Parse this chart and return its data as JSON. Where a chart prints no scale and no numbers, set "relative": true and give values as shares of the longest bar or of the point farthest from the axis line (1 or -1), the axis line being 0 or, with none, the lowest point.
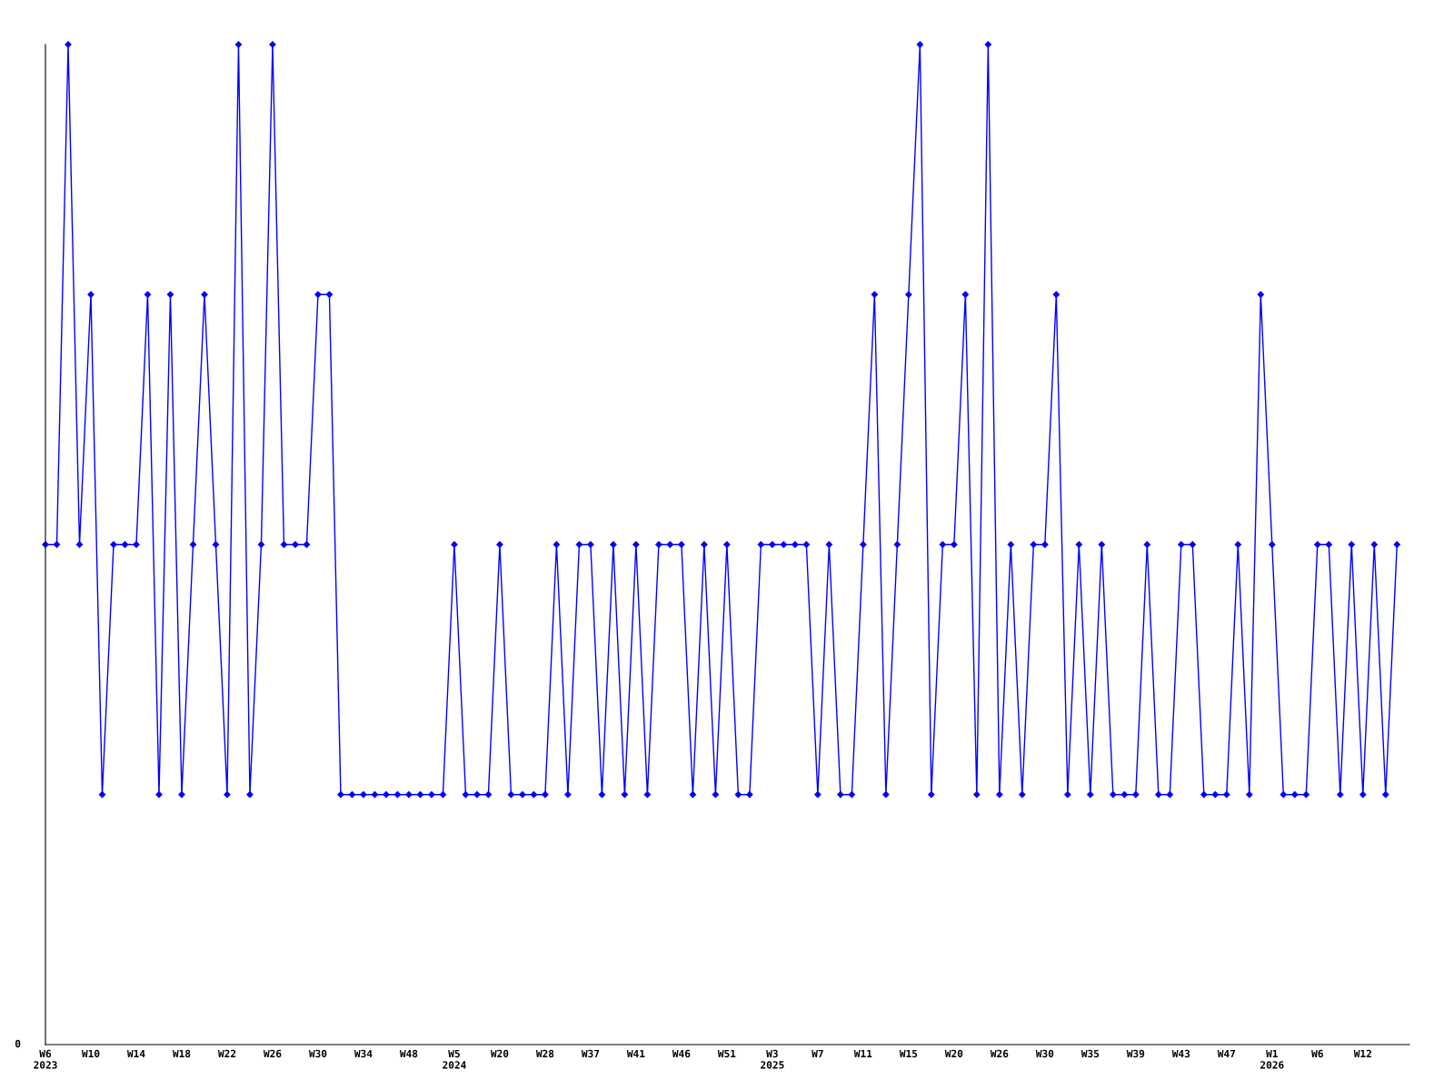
{
  "chart_data": {
    "type": "line",
    "relative": true,
    "marker": "diamond",
    "line_style": "solid",
    "grid": false,
    "legend": false,
    "annotations": [
      "0"
    ],
    "categories": [
      "W6\n2023",
      null,
      null,
      null,
      "W10",
      null,
      null,
      null,
      "W14",
      null,
      null,
      null,
      "W18",
      null,
      null,
      null,
      "W22",
      null,
      null,
      null,
      "W26",
      null,
      null,
      null,
      "W30",
      null,
      null,
      null,
      "W34",
      null,
      null,
      null,
      "W48",
      null,
      null,
      null,
      "W5\n2024",
      null,
      null,
      null,
      "W20",
      null,
      null,
      null,
      "W28",
      null,
      null,
      null,
      "W37",
      null,
      null,
      null,
      "W41",
      null,
      null,
      null,
      "W46",
      null,
      null,
      null,
      "W51",
      null,
      null,
      null,
      "W3\n2025",
      null,
      null,
      null,
      "W7",
      null,
      null,
      null,
      "W11",
      null,
      null,
      null,
      "W15",
      null,
      null,
      null,
      "W20",
      null,
      null,
      null,
      "W26",
      null,
      null,
      null,
      "W30",
      null,
      null,
      null,
      "W35",
      null,
      null,
      null,
      "W39",
      null,
      null,
      null,
      "W43",
      null,
      null,
      null,
      "W47",
      null,
      null,
      null,
      "W1\n2026",
      null,
      null,
      null,
      "W6",
      null,
      null,
      null,
      "W12",
      null,
      null,
      null
    ],
    "series": [
      {
        "color": "#0000ff",
        "values": [
          0.5,
          0.5,
          1,
          0.5,
          0.75,
          0.25,
          0.5,
          0.5,
          0.5,
          0.75,
          0.25,
          0.75,
          0.25,
          0.5,
          0.75,
          0.5,
          0.25,
          1,
          0.25,
          0.5,
          1,
          0.5,
          0.5,
          0.5,
          0.75,
          0.75,
          0.25,
          0.25,
          0.25,
          0.25,
          0.25,
          0.25,
          0.25,
          0.25,
          0.25,
          0.25,
          0.5,
          0.25,
          0.25,
          0.25,
          0.5,
          0.25,
          0.25,
          0.25,
          0.25,
          0.5,
          0.25,
          0.5,
          0.5,
          0.25,
          0.5,
          0.25,
          0.5,
          0.25,
          0.5,
          0.5,
          0.5,
          0.25,
          0.5,
          0.25,
          0.5,
          0.25,
          0.25,
          0.5,
          0.5,
          0.5,
          0.5,
          0.5,
          0.25,
          0.5,
          0.25,
          0.25,
          0.5,
          0.75,
          0.25,
          0.5,
          0.75,
          1,
          0.25,
          0.5,
          0.5,
          0.75,
          0.25,
          1,
          0.25,
          0.5,
          0.25,
          0.5,
          0.5,
          0.75,
          0.25,
          0.5,
          0.25,
          0.5,
          0.25,
          0.25,
          0.25,
          0.5,
          0.25,
          0.25,
          0.5,
          0.5,
          0.25,
          0.25,
          0.25,
          0.5,
          0.25,
          0.75,
          0.5,
          0.25,
          0.25,
          0.25,
          0.5,
          0.5,
          0.25,
          0.5,
          0.25,
          0.5,
          0.25,
          0.5
        ]
      }
    ]
  }
}
